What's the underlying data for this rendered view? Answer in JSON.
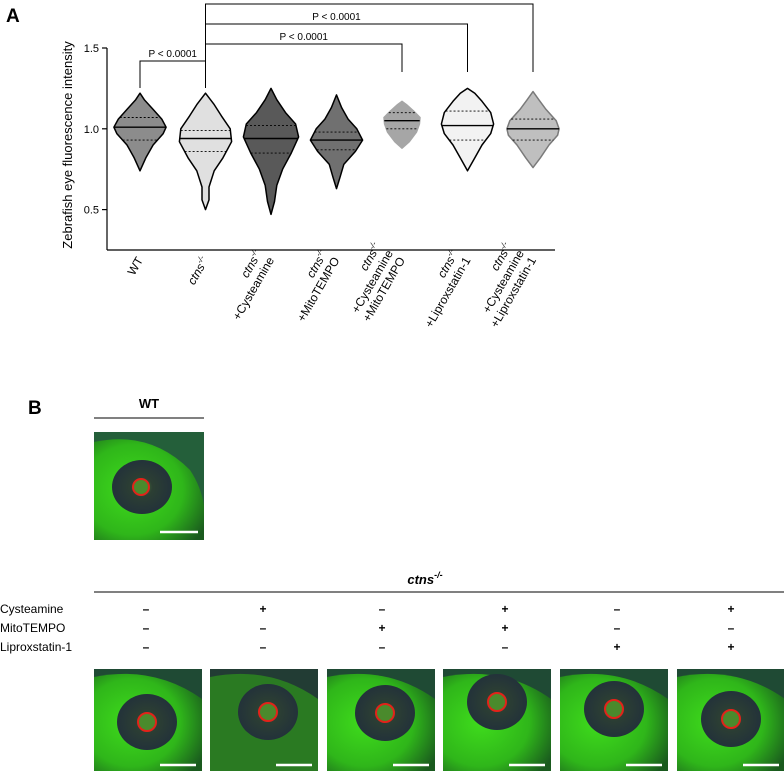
{
  "panel_a": {
    "letter": "A"
  },
  "panel_b": {
    "letter": "B",
    "wt_label": "WT",
    "genotype_base": "ctns",
    "genotype_sup": "-/-",
    "treatment_rows": [
      {
        "label": "Cysteamine",
        "values": [
          "–",
          "+",
          "–",
          "+",
          "–",
          "+"
        ]
      },
      {
        "label": "MitoTEMPO",
        "values": [
          "–",
          "–",
          "+",
          "+",
          "–",
          "–"
        ]
      },
      {
        "label": "Liproxstatin-1",
        "values": [
          "–",
          "–",
          "–",
          "–",
          "+",
          "+"
        ]
      }
    ],
    "colors": {
      "fish_bright": "#3fdc1c",
      "fish_dark": "#1a5a1e",
      "eye_dark": "#23323a",
      "eye_marker": "#e2231a",
      "scale_bar": "#ffffff"
    }
  },
  "chart_data": {
    "type": "violin",
    "ylabel": "Zebrafish eye fluorescence intensity",
    "ylim": [
      0.25,
      1.5
    ],
    "yticks": [
      "0.5",
      "1.0",
      "1.5"
    ],
    "categories": [
      {
        "lines": [
          "WT"
        ],
        "sup": ""
      },
      {
        "lines": [
          "ctns"
        ],
        "sup": "-/-"
      },
      {
        "lines": [
          "ctns",
          "+Cysteamine"
        ],
        "sup": "-/-"
      },
      {
        "lines": [
          "ctns",
          "+MitoTEMPO"
        ],
        "sup": "-/-"
      },
      {
        "lines": [
          "ctns",
          "+Cysteamine",
          "+MitoTEMPO"
        ],
        "sup": "-/-"
      },
      {
        "lines": [
          "ctns",
          "+Liproxstatin-1"
        ],
        "sup": "-/-"
      },
      {
        "lines": [
          "ctns",
          "+Cysteamine",
          "+Liproxstatin-1"
        ],
        "sup": "-/-"
      }
    ],
    "series": [
      {
        "fill": "#8c8c8c",
        "stroke": "#000000",
        "min": 0.74,
        "max": 1.22,
        "median": 1.01,
        "q1": 0.93,
        "q3": 1.07,
        "width": [
          [
            0.74,
            0.0
          ],
          [
            0.82,
            0.2
          ],
          [
            0.9,
            0.45
          ],
          [
            0.97,
            0.8
          ],
          [
            1.01,
            0.9
          ],
          [
            1.06,
            0.75
          ],
          [
            1.12,
            0.45
          ],
          [
            1.18,
            0.15
          ],
          [
            1.22,
            0.0
          ]
        ]
      },
      {
        "fill": "#e0e0e0",
        "stroke": "#000000",
        "min": 0.5,
        "max": 1.22,
        "median": 0.94,
        "q1": 0.86,
        "q3": 0.99,
        "width": [
          [
            0.5,
            0.0
          ],
          [
            0.56,
            0.12
          ],
          [
            0.64,
            0.12
          ],
          [
            0.74,
            0.3
          ],
          [
            0.82,
            0.6
          ],
          [
            0.92,
            0.9
          ],
          [
            1.0,
            0.85
          ],
          [
            1.08,
            0.55
          ],
          [
            1.15,
            0.3
          ],
          [
            1.22,
            0.0
          ]
        ]
      },
      {
        "fill": "#595959",
        "stroke": "#000000",
        "min": 0.47,
        "max": 1.25,
        "median": 0.94,
        "q1": 0.85,
        "q3": 1.02,
        "width": [
          [
            0.47,
            0.0
          ],
          [
            0.55,
            0.12
          ],
          [
            0.65,
            0.2
          ],
          [
            0.75,
            0.4
          ],
          [
            0.85,
            0.7
          ],
          [
            0.95,
            0.95
          ],
          [
            1.03,
            0.85
          ],
          [
            1.1,
            0.5
          ],
          [
            1.18,
            0.2
          ],
          [
            1.25,
            0.0
          ]
        ]
      },
      {
        "fill": "#707070",
        "stroke": "#000000",
        "min": 0.63,
        "max": 1.21,
        "median": 0.93,
        "q1": 0.87,
        "q3": 0.98,
        "width": [
          [
            0.63,
            0.0
          ],
          [
            0.7,
            0.12
          ],
          [
            0.78,
            0.25
          ],
          [
            0.86,
            0.65
          ],
          [
            0.93,
            0.9
          ],
          [
            1.0,
            0.7
          ],
          [
            1.06,
            0.4
          ],
          [
            1.13,
            0.18
          ],
          [
            1.21,
            0.0
          ]
        ]
      },
      {
        "fill": "#a6a6a6",
        "stroke": "#a6a6a6",
        "min": 0.88,
        "max": 1.17,
        "median": 1.05,
        "q1": 1.0,
        "q3": 1.1,
        "width": [
          [
            0.88,
            0.0
          ],
          [
            0.92,
            0.25
          ],
          [
            0.98,
            0.5
          ],
          [
            1.03,
            0.6
          ],
          [
            1.07,
            0.62
          ],
          [
            1.11,
            0.4
          ],
          [
            1.15,
            0.15
          ],
          [
            1.17,
            0.0
          ]
        ]
      },
      {
        "fill": "#f2f2f2",
        "stroke": "#000000",
        "min": 0.74,
        "max": 1.25,
        "median": 1.02,
        "q1": 0.93,
        "q3": 1.11,
        "width": [
          [
            0.74,
            0.0
          ],
          [
            0.82,
            0.25
          ],
          [
            0.9,
            0.5
          ],
          [
            0.97,
            0.8
          ],
          [
            1.03,
            0.9
          ],
          [
            1.1,
            0.8
          ],
          [
            1.17,
            0.5
          ],
          [
            1.22,
            0.25
          ],
          [
            1.25,
            0.0
          ]
        ]
      },
      {
        "fill": "#bfbfbf",
        "stroke": "#7a7a7a",
        "min": 0.76,
        "max": 1.23,
        "median": 1.0,
        "q1": 0.93,
        "q3": 1.06,
        "width": [
          [
            0.76,
            0.0
          ],
          [
            0.82,
            0.25
          ],
          [
            0.9,
            0.55
          ],
          [
            0.96,
            0.85
          ],
          [
            1.0,
            0.9
          ],
          [
            1.05,
            0.8
          ],
          [
            1.12,
            0.45
          ],
          [
            1.18,
            0.2
          ],
          [
            1.23,
            0.0
          ]
        ]
      }
    ],
    "comparisons": [
      {
        "from": 0,
        "to": 1,
        "label": "P < 0.0001",
        "level": 0
      },
      {
        "from": 1,
        "to": 4,
        "label": "P < 0.0001",
        "level": 1
      },
      {
        "from": 1,
        "to": 5,
        "label": "P < 0.0001",
        "level": 2
      },
      {
        "from": 1,
        "to": 6,
        "label": "P < 0.0001",
        "level": 3
      }
    ]
  }
}
